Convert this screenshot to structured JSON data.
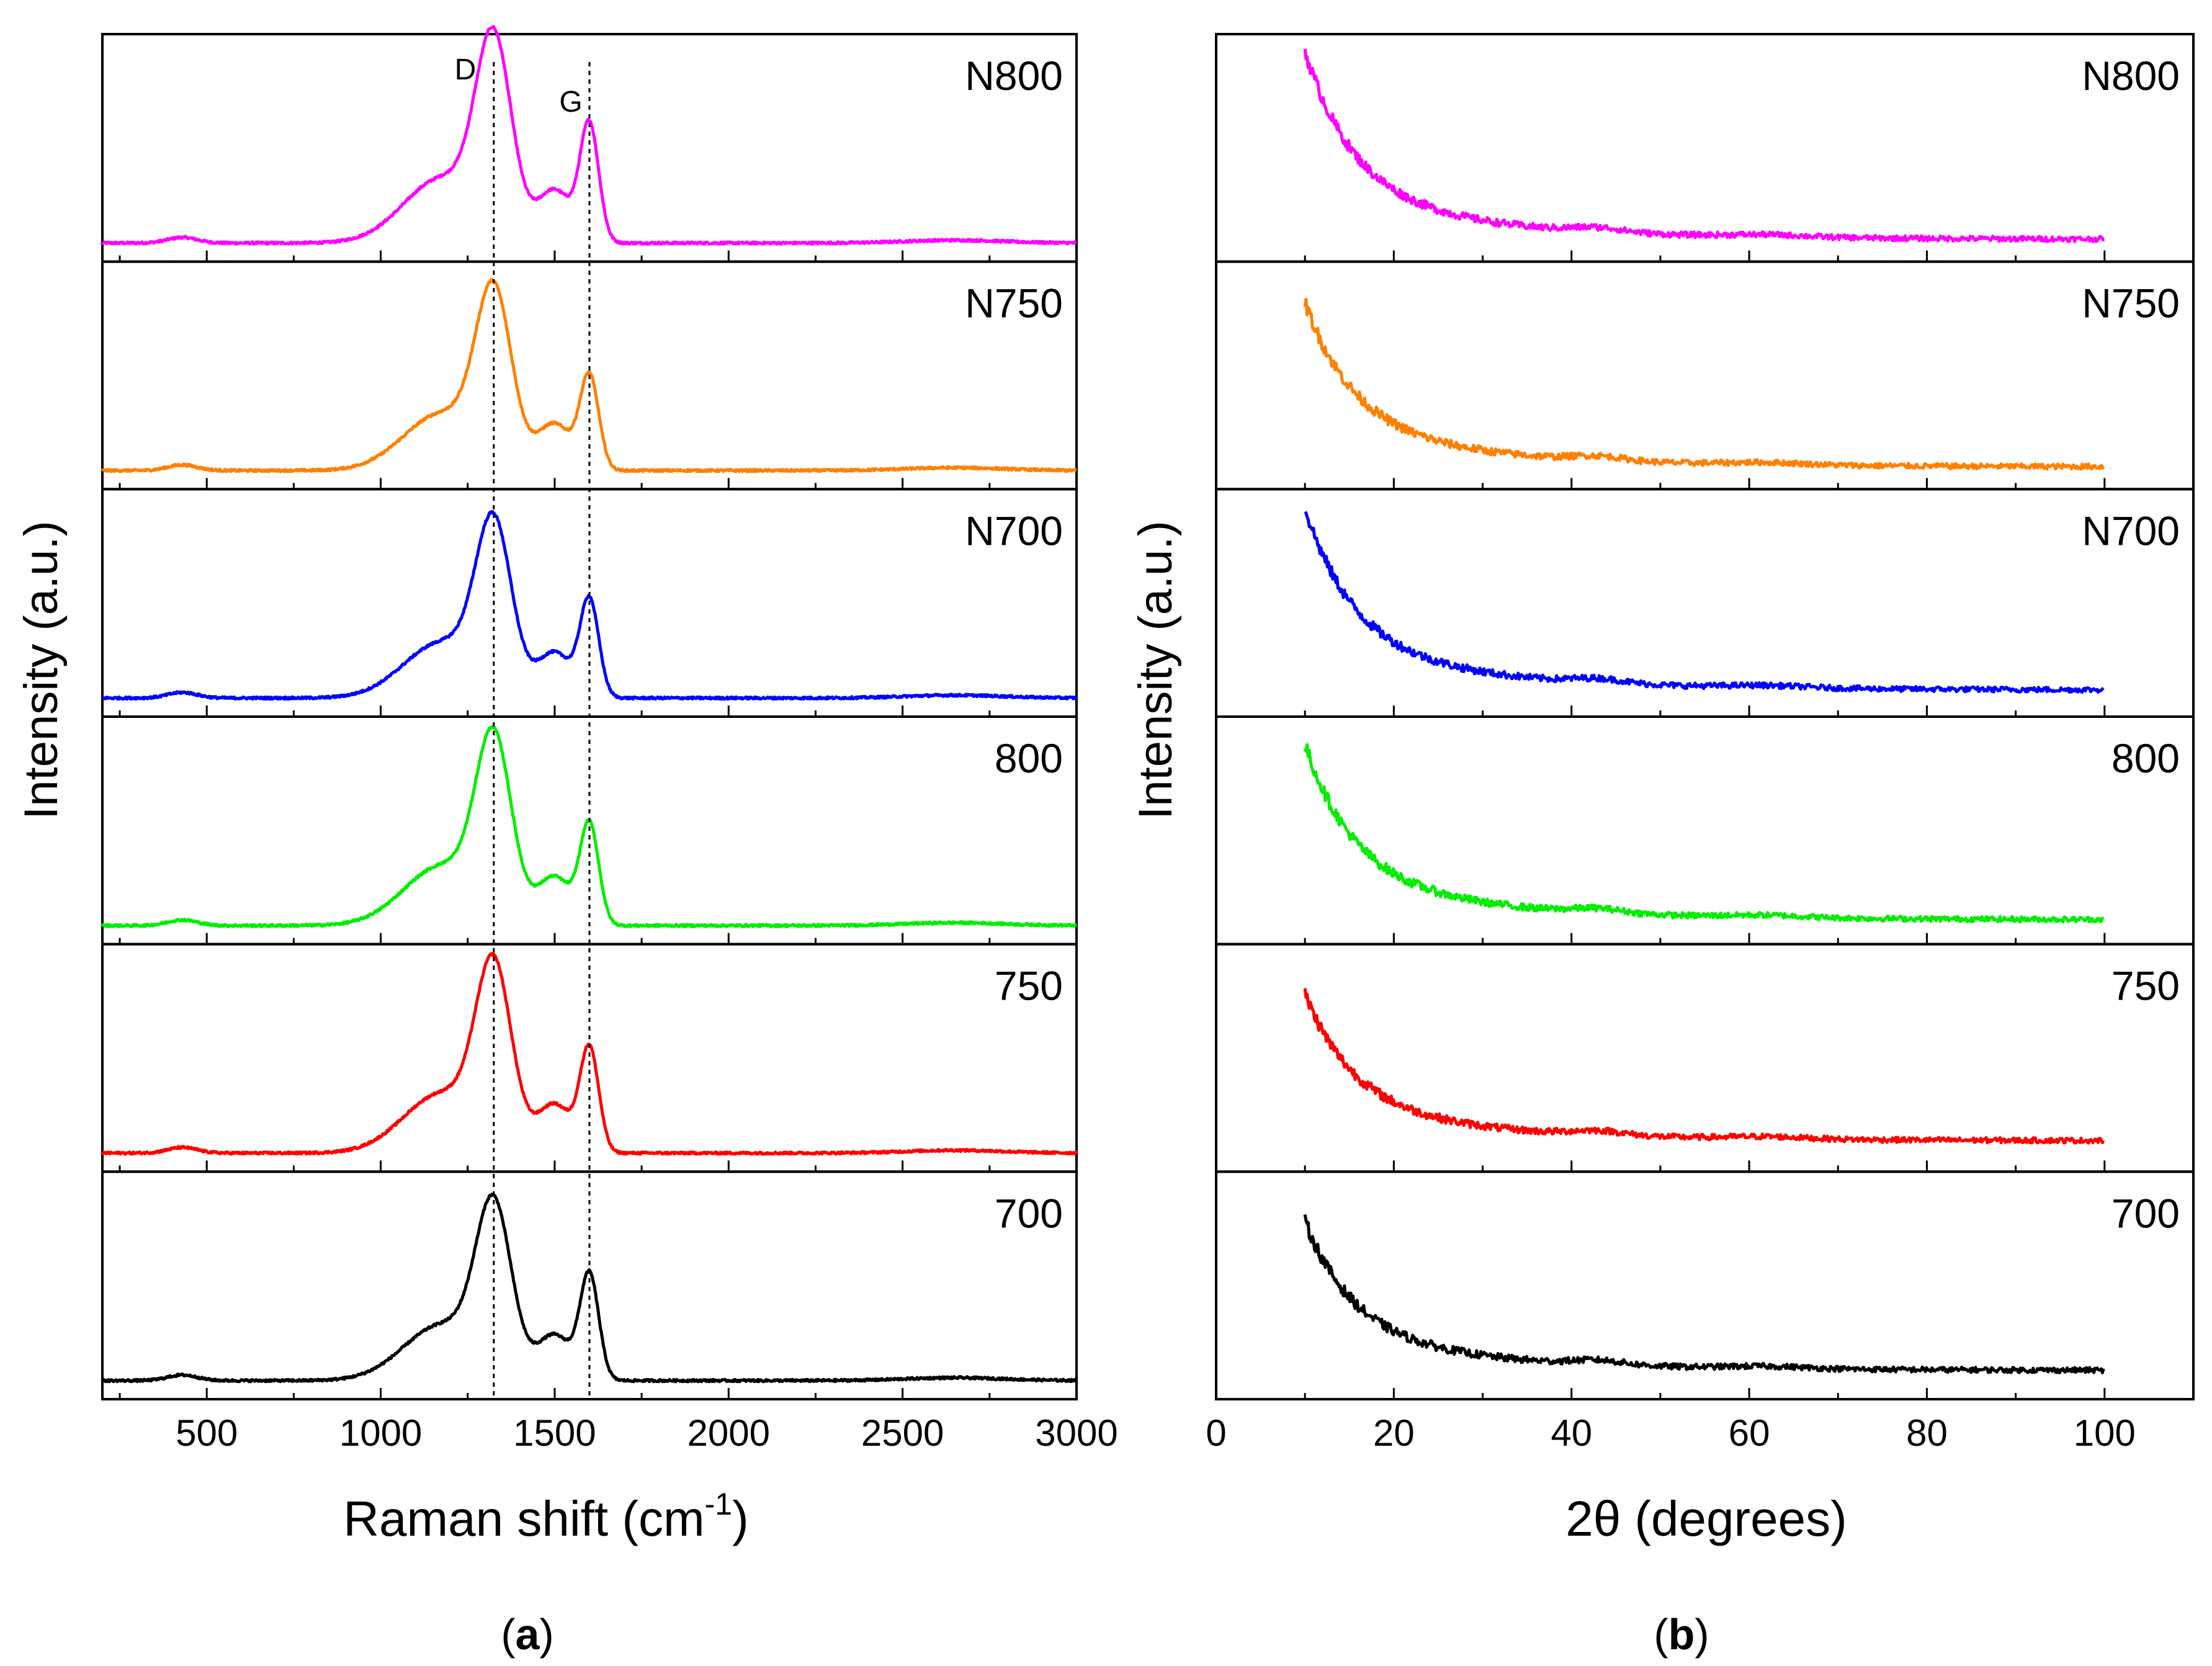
{
  "figure": {
    "panels": [
      {
        "id": "a",
        "caption": "(a)",
        "caption_letter": "a",
        "ylabel": "Intensity (a.u.)",
        "xlabel": "Raman shift (cm",
        "xlabel_sup": "-1",
        "xlabel_close": ")",
        "xticks": [
          500,
          1000,
          1500,
          2000,
          2500,
          3000
        ],
        "xtick_labels": [
          "500",
          "1000",
          "1500",
          "2000",
          "2500",
          "3000"
        ]
      },
      {
        "id": "b",
        "caption": "(b)",
        "caption_letter": "b",
        "ylabel": "Intensity (a.u.)",
        "xlabel": "2θ (degrees)",
        "xticks": [
          0,
          20,
          40,
          60,
          80,
          100
        ],
        "xtick_labels": [
          "0",
          "20",
          "40",
          "60",
          "80",
          "100"
        ]
      }
    ],
    "peak_labels": {
      "D": "D",
      "G": "G"
    }
  },
  "chart_data": [
    {
      "type": "line",
      "title": "",
      "xlabel": "Raman shift (cm-1)",
      "ylabel": "Intensity (a.u.)",
      "xlim": [
        200,
        3000
      ],
      "grid": false,
      "stacked_offsets": true,
      "reference_lines": [
        {
          "name": "D",
          "x": 1325
        },
        {
          "name": "G",
          "x": 1600
        }
      ],
      "series": [
        {
          "name": "N800",
          "color": "#ff00ff",
          "D": 1.0,
          "G": 0.72,
          "base": 0.04
        },
        {
          "name": "N750",
          "color": "#ff8000",
          "D": 0.88,
          "G": 0.58,
          "base": 0.04
        },
        {
          "name": "N700",
          "color": "#0000ff",
          "D": 0.86,
          "G": 0.6,
          "base": 0.04
        },
        {
          "name": "800",
          "color": "#00ee00",
          "D": 0.92,
          "G": 0.62,
          "base": 0.04
        },
        {
          "name": "750",
          "color": "#ff0000",
          "D": 0.92,
          "G": 0.64,
          "base": 0.04
        },
        {
          "name": "700",
          "color": "#000000",
          "D": 0.86,
          "G": 0.64,
          "base": 0.04
        }
      ]
    },
    {
      "type": "line",
      "title": "",
      "xlabel": "2θ (degrees)",
      "ylabel": "Intensity (a.u.)",
      "xlim": [
        0,
        110
      ],
      "grid": false,
      "stacked_offsets": true,
      "series": [
        {
          "name": "N800",
          "color": "#ff00ff",
          "start": 0.93,
          "end": 0.06
        },
        {
          "name": "N750",
          "color": "#ff8000",
          "start": 0.82,
          "end": 0.06
        },
        {
          "name": "N700",
          "color": "#0000ff",
          "start": 0.92,
          "end": 0.08
        },
        {
          "name": "800",
          "color": "#00ee00",
          "start": 0.88,
          "end": 0.07
        },
        {
          "name": "750",
          "color": "#ff0000",
          "start": 0.78,
          "end": 0.1
        },
        {
          "name": "700",
          "color": "#000000",
          "start": 0.78,
          "end": 0.09
        }
      ]
    }
  ]
}
